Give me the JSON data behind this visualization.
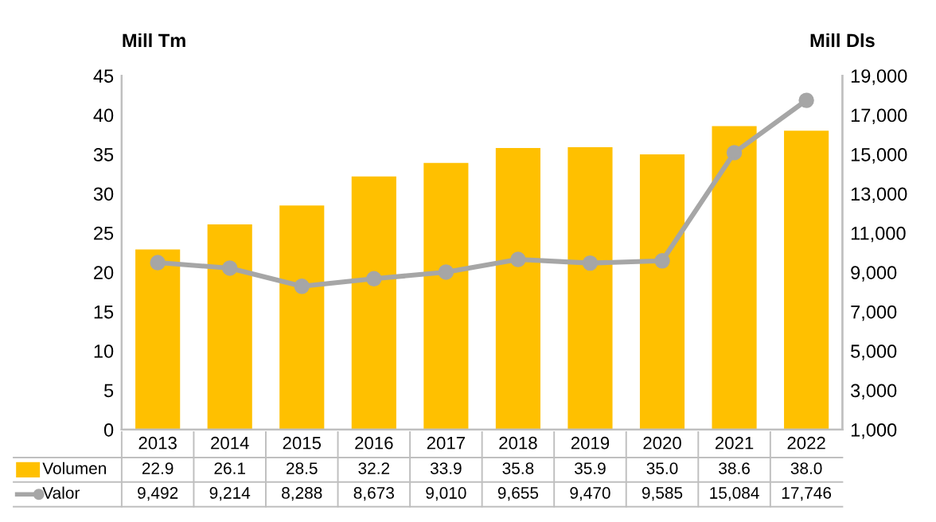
{
  "chart_data": {
    "type": "bar",
    "ylabel": "Mill Tm",
    "y2label": "Mill Dls",
    "categories": [
      "2013",
      "2014",
      "2015",
      "2016",
      "2017",
      "2018",
      "2019",
      "2020",
      "2021",
      "2022"
    ],
    "series": [
      {
        "name": "Volumen",
        "color": "#ffc000",
        "values": [
          22.9,
          26.1,
          28.5,
          32.2,
          33.9,
          35.8,
          35.9,
          35.0,
          38.6,
          38.0
        ],
        "value_labels": [
          "22.9",
          "26.1",
          "28.5",
          "32.2",
          "33.9",
          "35.8",
          "35.9",
          "35.0",
          "38.6",
          "38.0"
        ]
      },
      {
        "name": "Valor",
        "type": "line",
        "axis": "y2",
        "color": "#a6a6a6",
        "marker": "circle",
        "values": [
          9492,
          9214,
          8288,
          8673,
          9010,
          9655,
          9470,
          9585,
          15084,
          17746
        ],
        "value_labels": [
          "9,492",
          "9,214",
          "8,288",
          "8,673",
          "9,010",
          "9,655",
          "9,470",
          "9,585",
          "15,084",
          "17,746"
        ]
      }
    ],
    "ylim": [
      0,
      45
    ],
    "yticks": [
      0,
      5,
      10,
      15,
      20,
      25,
      30,
      35,
      40,
      45
    ],
    "y2lim": [
      1000,
      19000
    ],
    "y2ticks": [
      {
        "value": 1000,
        "label": "1,000"
      },
      {
        "value": 3000,
        "label": "3,000"
      },
      {
        "value": 5000,
        "label": "5,000"
      },
      {
        "value": 7000,
        "label": "7,000"
      },
      {
        "value": 9000,
        "label": "9,000"
      },
      {
        "value": 11000,
        "label": "11,000"
      },
      {
        "value": 13000,
        "label": "13,000"
      },
      {
        "value": 15000,
        "label": "15,000"
      },
      {
        "value": 17000,
        "label": "17,000"
      },
      {
        "value": 19000,
        "label": "19,000"
      }
    ],
    "grid": false,
    "legend": "bottom"
  }
}
